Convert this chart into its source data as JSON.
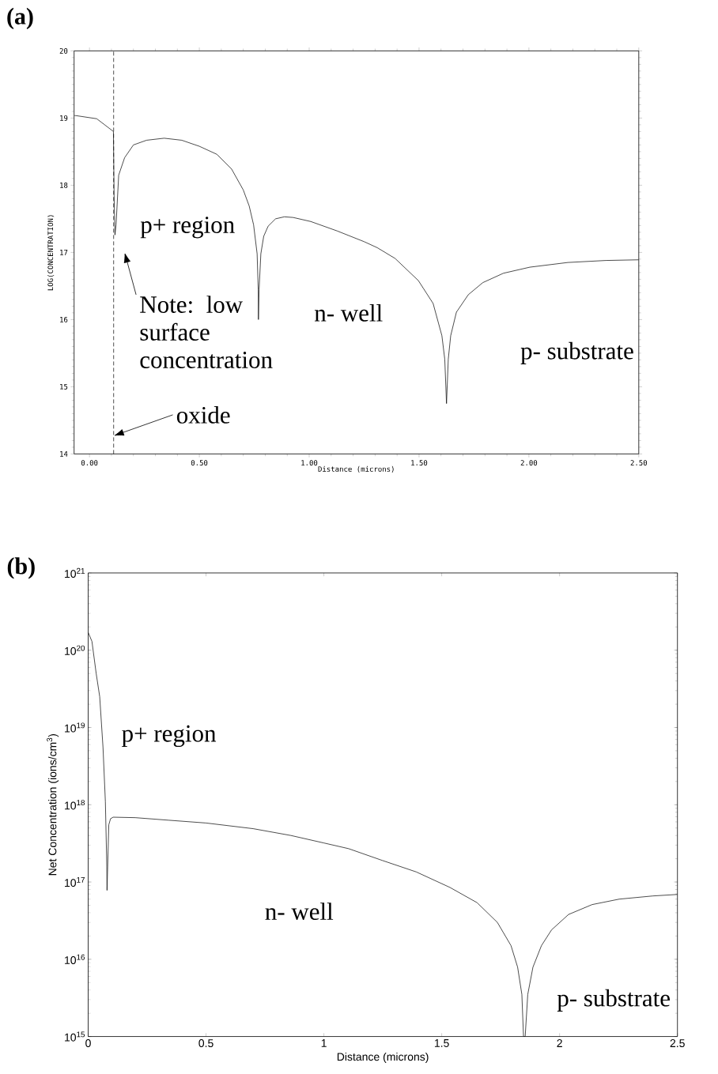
{
  "chart_data": [
    {
      "type": "line",
      "title": "(a)",
      "xlabel": "Distance (microns)",
      "ylabel": "LOG(CONCENTRATION)",
      "xlim": [
        -0.07,
        2.5
      ],
      "ylim": [
        14,
        20
      ],
      "xticks": [
        {
          "value": 0,
          "label": "0.00"
        },
        {
          "value": 0.5,
          "label": "0.50"
        },
        {
          "value": 1,
          "label": "1.00"
        },
        {
          "value": 1.5,
          "label": "1.50"
        },
        {
          "value": 2,
          "label": "2.00"
        },
        {
          "value": 2.5,
          "label": "2.50"
        }
      ],
      "yticks": [
        14,
        15,
        16,
        17,
        18,
        19,
        20
      ],
      "x": [
        -0.069,
        0.033,
        0.109,
        0.112,
        0.116,
        0.121,
        0.133,
        0.16,
        0.2,
        0.26,
        0.34,
        0.42,
        0.5,
        0.58,
        0.647,
        0.7,
        0.727,
        0.747,
        0.763,
        0.768,
        0.769,
        0.772,
        0.78,
        0.793,
        0.813,
        0.847,
        0.887,
        0.927,
        1.007,
        1.127,
        1.25,
        1.31,
        1.391,
        1.497,
        1.564,
        1.604,
        1.617,
        1.625,
        1.633,
        1.644,
        1.67,
        1.724,
        1.79,
        1.884,
        2.004,
        2.177,
        2.35,
        2.5
      ],
      "series": [
        {
          "color": "#000000",
          "values": [
            19.04,
            18.99,
            18.8,
            17.85,
            17.26,
            17.41,
            18.15,
            18.41,
            18.6,
            18.67,
            18.7,
            18.67,
            18.58,
            18.46,
            18.24,
            17.93,
            17.69,
            17.41,
            16.98,
            16.45,
            16.0,
            16.45,
            16.98,
            17.24,
            17.39,
            17.5,
            17.53,
            17.52,
            17.46,
            17.32,
            17.16,
            17.07,
            16.91,
            16.58,
            16.24,
            15.76,
            15.41,
            14.75,
            15.41,
            15.76,
            16.11,
            16.37,
            16.55,
            16.69,
            16.78,
            16.85,
            16.88,
            16.89
          ]
        }
      ],
      "ref_lines": [
        {
          "axis": "x",
          "value": 0.11,
          "line_style": "dashed",
          "color": "#000000"
        }
      ],
      "annotations": [
        "p+ region",
        "n- well",
        "p- substrate",
        "Note: low surface concentration",
        {
          "text": "oxide",
          "x": 0.11,
          "y": 14.27
        }
      ]
    },
    {
      "type": "line",
      "title": "(b)",
      "xlabel": "Distance (microns)",
      "ylabel": "Net Concentration (ions/cm$^{3}$)",
      "log": "y",
      "xlim": [
        0,
        2.5
      ],
      "ylim": [
        1000000000000000.0,
        1e+21
      ],
      "xticks": [
        0,
        0.5,
        1,
        1.5,
        2,
        2.5
      ],
      "yticks": [
        {
          "value": 1000000000000000.0,
          "label": "10$^{15}$"
        },
        {
          "value": 1e+16,
          "label": "10$^{16}$"
        },
        {
          "value": 1e+17,
          "label": "10$^{17}$"
        },
        {
          "value": 1e+18,
          "label": "10$^{18}$"
        },
        {
          "value": 1e+19,
          "label": "10$^{19}$"
        },
        {
          "value": 1e+20,
          "label": "10$^{20}$"
        },
        {
          "value": 1e+21,
          "label": "10$^{21}$"
        }
      ],
      "x": [
        0,
        0.016,
        0.034,
        0.049,
        0.063,
        0.073,
        0.079,
        0.08,
        0.0875,
        0.095,
        0.106,
        0.2,
        0.343,
        0.5,
        0.7,
        0.86,
        1.0,
        1.105,
        1.248,
        1.392,
        1.535,
        1.65,
        1.736,
        1.794,
        1.822,
        1.84,
        1.847,
        1.854,
        1.865,
        1.887,
        1.923,
        1.966,
        2.038,
        2.138,
        2.253,
        2.396,
        2.5
      ],
      "series": [
        {
          "color": "#000000",
          "values": [
            1.7e+20,
            1.3e+20,
            5e+19,
            2.5e+19,
            5.5e+18,
            1.1e+18,
            1.6e+17,
            7.8e+16,
            5.5e+17,
            6.6e+17,
            6.9e+17,
            6.8e+17,
            6.3e+17,
            5.8e+17,
            4.9e+17,
            4e+17,
            3.2e+17,
            2.7e+17,
            1.9e+17,
            1.35e+17,
            8.5e+16,
            5.4e+16,
            3e+16,
            1.5e+16,
            7900000000000000.0,
            3500000000000000.0,
            1000000000000000.0,
            1000000000000000.0,
            3500000000000000.0,
            7900000000000000.0,
            1.5e+16,
            2.4e+16,
            3.8e+16,
            5.1e+16,
            6e+16,
            6.6e+16,
            6.9e+16
          ]
        }
      ],
      "annotations": [
        "p+ region",
        "n- well",
        "p- substrate"
      ]
    }
  ]
}
